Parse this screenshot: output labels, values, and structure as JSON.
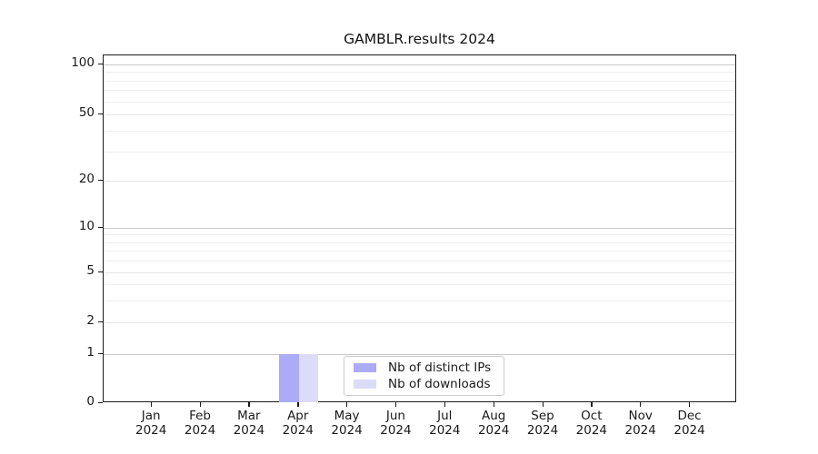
{
  "chart_data": {
    "type": "bar",
    "title": "GAMBLR.results 2024",
    "x_months": [
      "Jan",
      "Feb",
      "Mar",
      "Apr",
      "May",
      "Jun",
      "Jul",
      "Aug",
      "Sep",
      "Oct",
      "Nov",
      "Dec"
    ],
    "x_year": "2024",
    "series": [
      {
        "name": "Nb of distinct IPs",
        "color": "#ababf8",
        "values": [
          0,
          0,
          0,
          1,
          0,
          0,
          0,
          0,
          0,
          0,
          0,
          0
        ]
      },
      {
        "name": "Nb of downloads",
        "color": "#dcdcf8",
        "values": [
          0,
          0,
          0,
          1,
          0,
          0,
          0,
          0,
          0,
          0,
          0,
          0
        ]
      }
    ],
    "y_axis": {
      "scale": "log-like with 0 baseline",
      "tick_labels": [
        "0",
        "1",
        "2",
        "5",
        "10",
        "20",
        "50",
        "100"
      ],
      "tick_values": [
        0,
        1,
        2,
        5,
        10,
        20,
        50,
        100
      ],
      "minor_tick_values": [
        3,
        4,
        6,
        7,
        8,
        9,
        30,
        40,
        60,
        70,
        80,
        90
      ],
      "decade_values": [
        1,
        10,
        100
      ]
    },
    "grid": "horizontal only",
    "legend": {
      "position": "lower center inside plot",
      "entries": [
        "Nb of distinct IPs",
        "Nb of downloads"
      ]
    },
    "colors": {
      "bar_distinct_ips": "#ababf8",
      "bar_downloads": "#dcdcf8",
      "grid_major": "#c9c9c9",
      "grid_mid": "#e4e4e4",
      "grid_minor": "#efefef",
      "axis": "#1a1a1a",
      "legend_border": "#cccccc"
    }
  }
}
